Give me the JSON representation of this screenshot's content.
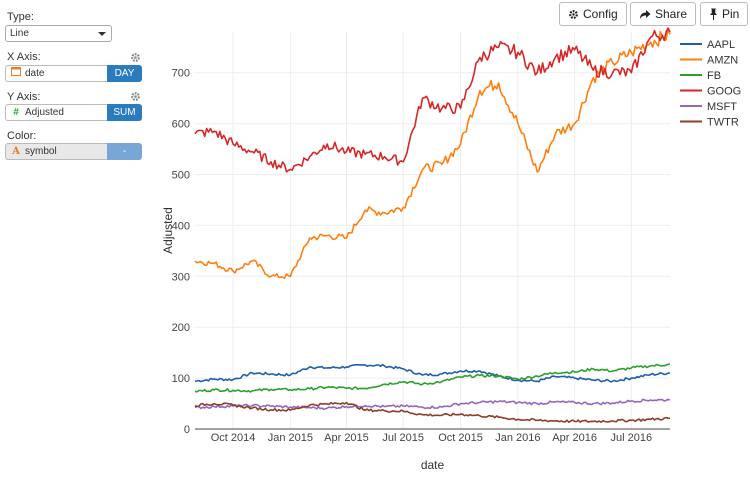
{
  "sidebar": {
    "type_label": "Type:",
    "type_value": "Line",
    "xaxis_label": "X Axis:",
    "xaxis_field": "date",
    "xaxis_agg": "DAY",
    "yaxis_label": "Y Axis:",
    "yaxis_field": "Adjusted",
    "yaxis_agg": "SUM",
    "color_label": "Color:",
    "color_field": "symbol",
    "color_agg": "-"
  },
  "toolbar": {
    "config_label": "Config",
    "share_label": "Share",
    "pin_label": "Pin"
  },
  "colors": {
    "AAPL": "#1f5fa8",
    "AMZN": "#ff7f0e",
    "FB": "#2ca02c",
    "GOOG": "#d62728",
    "MSFT": "#9467bd",
    "TWTR": "#8c3e2a",
    "accent": "#2b7bbf"
  },
  "chart_data": {
    "type": "line",
    "xlabel": "date",
    "ylabel": "Adjusted",
    "xlim": [
      "2014-08-01",
      "2016-09-01"
    ],
    "ylim": [
      0,
      780
    ],
    "x_ticks": [
      {
        "date": "2014-10-01",
        "label": "Oct 2014"
      },
      {
        "date": "2015-01-01",
        "label": "Jan 2015"
      },
      {
        "date": "2015-04-01",
        "label": "Apr 2015"
      },
      {
        "date": "2015-07-01",
        "label": "Jul 2015"
      },
      {
        "date": "2015-10-01",
        "label": "Oct 2015"
      },
      {
        "date": "2016-01-01",
        "label": "Jan 2016"
      },
      {
        "date": "2016-04-01",
        "label": "Apr 2016"
      },
      {
        "date": "2016-07-01",
        "label": "Jul 2016"
      }
    ],
    "y_ticks": [
      0,
      100,
      200,
      300,
      400,
      500,
      600,
      700
    ],
    "grid": true,
    "legend": "right",
    "series": [
      {
        "name": "AAPL",
        "points": [
          [
            "2014-08-01",
            94
          ],
          [
            "2014-09-01",
            98
          ],
          [
            "2014-10-01",
            97
          ],
          [
            "2014-11-01",
            110
          ],
          [
            "2014-12-01",
            108
          ],
          [
            "2015-01-01",
            106
          ],
          [
            "2015-02-01",
            122
          ],
          [
            "2015-03-01",
            120
          ],
          [
            "2015-04-01",
            122
          ],
          [
            "2015-05-01",
            126
          ],
          [
            "2015-06-01",
            124
          ],
          [
            "2015-07-01",
            118
          ],
          [
            "2015-08-01",
            106
          ],
          [
            "2015-09-01",
            108
          ],
          [
            "2015-10-01",
            114
          ],
          [
            "2015-11-01",
            114
          ],
          [
            "2015-12-01",
            104
          ],
          [
            "2016-01-01",
            96
          ],
          [
            "2016-02-01",
            94
          ],
          [
            "2016-03-01",
            103
          ],
          [
            "2016-04-01",
            100
          ],
          [
            "2016-05-01",
            96
          ],
          [
            "2016-06-01",
            94
          ],
          [
            "2016-07-01",
            100
          ],
          [
            "2016-08-01",
            107
          ],
          [
            "2016-09-01",
            110
          ]
        ]
      },
      {
        "name": "AMZN",
        "points": [
          [
            "2014-08-01",
            330
          ],
          [
            "2014-09-01",
            325
          ],
          [
            "2014-10-01",
            310
          ],
          [
            "2014-11-01",
            330
          ],
          [
            "2014-12-01",
            300
          ],
          [
            "2015-01-01",
            300
          ],
          [
            "2015-02-01",
            375
          ],
          [
            "2015-03-01",
            380
          ],
          [
            "2015-04-01",
            375
          ],
          [
            "2015-05-01",
            430
          ],
          [
            "2015-06-01",
            425
          ],
          [
            "2015-07-01",
            435
          ],
          [
            "2015-08-01",
            510
          ],
          [
            "2015-09-01",
            520
          ],
          [
            "2015-10-01",
            560
          ],
          [
            "2015-11-01",
            665
          ],
          [
            "2015-12-01",
            680
          ],
          [
            "2016-01-01",
            600
          ],
          [
            "2016-02-01",
            505
          ],
          [
            "2016-03-01",
            580
          ],
          [
            "2016-04-01",
            600
          ],
          [
            "2016-05-01",
            690
          ],
          [
            "2016-06-01",
            720
          ],
          [
            "2016-07-01",
            740
          ],
          [
            "2016-08-01",
            760
          ],
          [
            "2016-09-01",
            775
          ]
        ]
      },
      {
        "name": "FB",
        "points": [
          [
            "2014-08-01",
            74
          ],
          [
            "2014-09-01",
            77
          ],
          [
            "2014-10-01",
            76
          ],
          [
            "2014-11-01",
            75
          ],
          [
            "2014-12-01",
            78
          ],
          [
            "2015-01-01",
            77
          ],
          [
            "2015-02-01",
            79
          ],
          [
            "2015-03-01",
            82
          ],
          [
            "2015-04-01",
            80
          ],
          [
            "2015-05-01",
            80
          ],
          [
            "2015-06-01",
            88
          ],
          [
            "2015-07-01",
            93
          ],
          [
            "2015-08-01",
            88
          ],
          [
            "2015-09-01",
            93
          ],
          [
            "2015-10-01",
            102
          ],
          [
            "2015-11-01",
            105
          ],
          [
            "2015-12-01",
            104
          ],
          [
            "2016-01-01",
            98
          ],
          [
            "2016-02-01",
            104
          ],
          [
            "2016-03-01",
            111
          ],
          [
            "2016-04-01",
            112
          ],
          [
            "2016-05-01",
            118
          ],
          [
            "2016-06-01",
            114
          ],
          [
            "2016-07-01",
            120
          ],
          [
            "2016-08-01",
            124
          ],
          [
            "2016-09-01",
            127
          ]
        ]
      },
      {
        "name": "GOOG",
        "points": [
          [
            "2014-08-01",
            580
          ],
          [
            "2014-09-01",
            585
          ],
          [
            "2014-10-01",
            560
          ],
          [
            "2014-11-01",
            545
          ],
          [
            "2014-12-01",
            525
          ],
          [
            "2015-01-01",
            510
          ],
          [
            "2015-02-01",
            535
          ],
          [
            "2015-03-01",
            560
          ],
          [
            "2015-04-01",
            545
          ],
          [
            "2015-05-01",
            540
          ],
          [
            "2015-06-01",
            535
          ],
          [
            "2015-07-01",
            525
          ],
          [
            "2015-08-01",
            650
          ],
          [
            "2015-09-01",
            630
          ],
          [
            "2015-10-01",
            630
          ],
          [
            "2015-11-01",
            730
          ],
          [
            "2015-12-01",
            750
          ],
          [
            "2016-01-01",
            740
          ],
          [
            "2016-02-01",
            700
          ],
          [
            "2016-03-01",
            730
          ],
          [
            "2016-04-01",
            745
          ],
          [
            "2016-05-01",
            705
          ],
          [
            "2016-06-01",
            700
          ],
          [
            "2016-07-01",
            700
          ],
          [
            "2016-08-01",
            770
          ],
          [
            "2016-09-01",
            780
          ]
        ]
      },
      {
        "name": "MSFT",
        "points": [
          [
            "2014-08-01",
            42
          ],
          [
            "2014-09-01",
            44
          ],
          [
            "2014-10-01",
            45
          ],
          [
            "2014-11-01",
            46
          ],
          [
            "2014-12-01",
            45
          ],
          [
            "2015-01-01",
            43
          ],
          [
            "2015-02-01",
            42
          ],
          [
            "2015-03-01",
            41
          ],
          [
            "2015-04-01",
            44
          ],
          [
            "2015-05-01",
            46
          ],
          [
            "2015-06-01",
            44
          ],
          [
            "2015-07-01",
            45
          ],
          [
            "2015-08-01",
            43
          ],
          [
            "2015-09-01",
            43
          ],
          [
            "2015-10-01",
            50
          ],
          [
            "2015-11-01",
            52
          ],
          [
            "2015-12-01",
            54
          ],
          [
            "2016-01-01",
            52
          ],
          [
            "2016-02-01",
            50
          ],
          [
            "2016-03-01",
            53
          ],
          [
            "2016-04-01",
            52
          ],
          [
            "2016-05-01",
            50
          ],
          [
            "2016-06-01",
            51
          ],
          [
            "2016-07-01",
            55
          ],
          [
            "2016-08-01",
            57
          ],
          [
            "2016-09-01",
            57
          ]
        ]
      },
      {
        "name": "TWTR",
        "points": [
          [
            "2014-08-01",
            46
          ],
          [
            "2014-09-01",
            50
          ],
          [
            "2014-10-01",
            47
          ],
          [
            "2014-11-01",
            41
          ],
          [
            "2014-12-01",
            38
          ],
          [
            "2015-01-01",
            37
          ],
          [
            "2015-02-01",
            47
          ],
          [
            "2015-03-01",
            49
          ],
          [
            "2015-04-01",
            52
          ],
          [
            "2015-05-01",
            37
          ],
          [
            "2015-06-01",
            36
          ],
          [
            "2015-07-01",
            35
          ],
          [
            "2015-08-01",
            28
          ],
          [
            "2015-09-01",
            27
          ],
          [
            "2015-10-01",
            29
          ],
          [
            "2015-11-01",
            26
          ],
          [
            "2015-12-01",
            23
          ],
          [
            "2016-01-01",
            19
          ],
          [
            "2016-02-01",
            17
          ],
          [
            "2016-03-01",
            16
          ],
          [
            "2016-04-01",
            15
          ],
          [
            "2016-05-01",
            15
          ],
          [
            "2016-06-01",
            16
          ],
          [
            "2016-07-01",
            17
          ],
          [
            "2016-08-01",
            19
          ],
          [
            "2016-09-01",
            21
          ]
        ]
      }
    ]
  }
}
